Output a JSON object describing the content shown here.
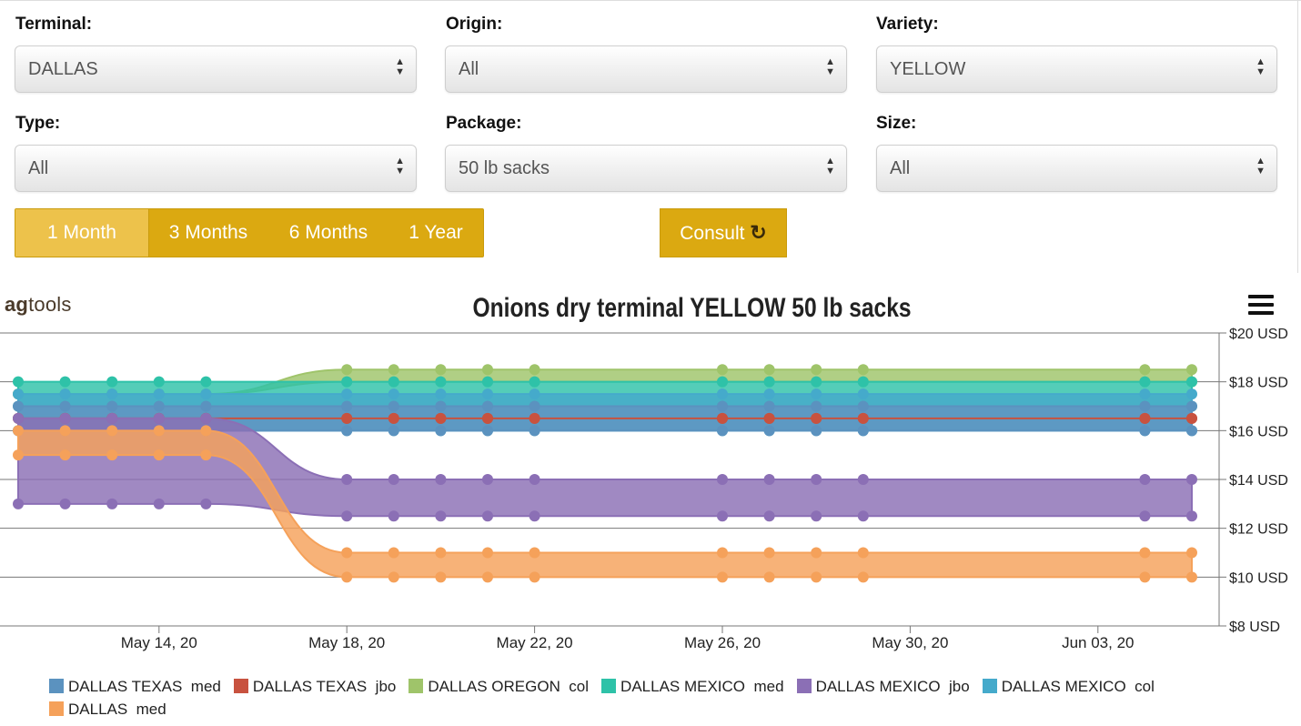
{
  "filters": {
    "terminal": {
      "label": "Terminal:",
      "value": "DALLAS"
    },
    "origin": {
      "label": "Origin:",
      "value": "All"
    },
    "variety": {
      "label": "Variety:",
      "value": "YELLOW"
    },
    "type": {
      "label": "Type:",
      "value": "All"
    },
    "package": {
      "label": "Package:",
      "value": "50 lb sacks"
    },
    "size": {
      "label": "Size:",
      "value": "All"
    }
  },
  "range_buttons": [
    "1 Month",
    "3 Months",
    "6 Months",
    "1 Year"
  ],
  "active_range": "1 Month",
  "consult_label": "Consult",
  "logo": {
    "bold": "ag",
    "rest": "tools"
  },
  "chart_data": {
    "type": "area",
    "title": "Onions dry terminal YELLOW 50 lb sacks",
    "x": [
      "May 11, 20",
      "May 12, 20",
      "May 13, 20",
      "May 14, 20",
      "May 15, 20",
      "May 18, 20",
      "May 19, 20",
      "May 20, 20",
      "May 21, 20",
      "May 22, 20",
      "May 26, 20",
      "May 27, 20",
      "May 28, 20",
      "May 29, 20",
      "Jun 04, 20",
      "Jun 05, 20"
    ],
    "x_tick_labels": [
      "May 14, 20",
      "May 18, 20",
      "May 22, 20",
      "May 26, 20",
      "May 30, 20",
      "Jun 03, 20"
    ],
    "y_tick_labels": [
      "$20 USD",
      "$18 USD",
      "$16 USD",
      "$14 USD",
      "$12 USD",
      "$10 USD",
      "$8 USD"
    ],
    "ylim": [
      8,
      20
    ],
    "grid": true,
    "legend_position": "bottom",
    "series": [
      {
        "name": "DALLAS TEXAS  med",
        "color": "#5b92bf",
        "low": [
          16,
          16,
          16,
          16,
          16,
          16,
          16,
          16,
          16,
          16,
          16,
          16,
          16,
          16,
          16,
          16
        ],
        "high": [
          17,
          17,
          17,
          17,
          17,
          17,
          17,
          17,
          17,
          17,
          17,
          17,
          17,
          17,
          17,
          17
        ]
      },
      {
        "name": "DALLAS TEXAS  jbo",
        "color": "#c8523f",
        "low": [
          16.5,
          16.5,
          16.5,
          16.5,
          16.5,
          16.5,
          16.5,
          16.5,
          16.5,
          16.5,
          16.5,
          16.5,
          16.5,
          16.5,
          16.5,
          16.5
        ],
        "high": [
          16.5,
          16.5,
          16.5,
          16.5,
          16.5,
          16.5,
          16.5,
          16.5,
          16.5,
          16.5,
          16.5,
          16.5,
          16.5,
          16.5,
          16.5,
          16.5
        ]
      },
      {
        "name": "DALLAS OREGON  col",
        "color": "#9fc46a",
        "low": [
          17.5,
          17.5,
          17.5,
          17.5,
          17.5,
          18,
          18,
          18,
          18,
          18,
          18,
          18,
          18,
          18,
          18,
          18
        ],
        "high": [
          17.5,
          17.5,
          17.5,
          17.5,
          17.5,
          18.5,
          18.5,
          18.5,
          18.5,
          18.5,
          18.5,
          18.5,
          18.5,
          18.5,
          18.5,
          18.5
        ]
      },
      {
        "name": "DALLAS MEXICO  med",
        "color": "#2ec2a8",
        "low": [
          17,
          17,
          17,
          17,
          17,
          17,
          17,
          17,
          17,
          17,
          17,
          17,
          17,
          17,
          17,
          17
        ],
        "high": [
          18,
          18,
          18,
          18,
          18,
          18,
          18,
          18,
          18,
          18,
          18,
          18,
          18,
          18,
          18,
          18
        ]
      },
      {
        "name": "DALLAS MEXICO  jbo",
        "color": "#8b6fb5",
        "low": [
          13,
          13,
          13,
          13,
          13,
          12.5,
          12.5,
          12.5,
          12.5,
          12.5,
          12.5,
          12.5,
          12.5,
          12.5,
          12.5,
          12.5
        ],
        "high": [
          16.5,
          16.5,
          16.5,
          16.5,
          16.5,
          14,
          14,
          14,
          14,
          14,
          14,
          14,
          14,
          14,
          14,
          14
        ]
      },
      {
        "name": "DALLAS MEXICO  col",
        "color": "#45aacb",
        "low": [
          16,
          16,
          16,
          16,
          16,
          16,
          16,
          16,
          16,
          16,
          16,
          16,
          16,
          16,
          16,
          16
        ],
        "high": [
          17.5,
          17.5,
          17.5,
          17.5,
          17.5,
          17.5,
          17.5,
          17.5,
          17.5,
          17.5,
          17.5,
          17.5,
          17.5,
          17.5,
          17.5,
          17.5
        ]
      },
      {
        "name": "DALLAS  med",
        "color": "#f5a15a",
        "low": [
          15,
          15,
          15,
          15,
          15,
          10,
          10,
          10,
          10,
          10,
          10,
          10,
          10,
          10,
          10,
          10
        ],
        "high": [
          16,
          16,
          16,
          16,
          16,
          11,
          11,
          11,
          11,
          11,
          11,
          11,
          11,
          11,
          11,
          11
        ]
      }
    ]
  }
}
